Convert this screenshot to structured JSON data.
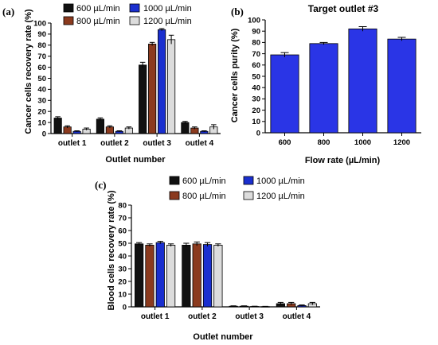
{
  "panels": {
    "a": "(a)",
    "b": "(b)",
    "c": "(c)"
  },
  "legend_ac": [
    "600 µL/min",
    "800 µL/min",
    "1000 µL/min",
    "1200 µL/min"
  ],
  "colors": {
    "600": "#111111",
    "800": "#8b3a1e",
    "1000": "#1a2fcf",
    "1200": "#dcdcdc",
    "bar_b": "#2a35e6"
  },
  "chart_data": [
    {
      "type": "bar",
      "panel": "a",
      "title": "",
      "xlabel": "Outlet number",
      "ylabel": "Cancer cells recovery rate (%)",
      "categories": [
        "outlet 1",
        "outlet 2",
        "outlet 3",
        "outlet 4"
      ],
      "ylim": [
        0,
        100
      ],
      "yticks": [
        0,
        10,
        20,
        30,
        40,
        50,
        60,
        70,
        80,
        90,
        100
      ],
      "series": [
        {
          "name": "600 µL/min",
          "values": [
            14,
            13,
            62,
            10
          ],
          "errors": [
            1.2,
            1.2,
            2.5,
            1
          ]
        },
        {
          "name": "800 µL/min",
          "values": [
            6,
            6,
            81,
            5
          ],
          "errors": [
            1,
            1,
            1.5,
            1
          ]
        },
        {
          "name": "1000 µL/min",
          "values": [
            2,
            2,
            94,
            2
          ],
          "errors": [
            0.5,
            0.5,
            1,
            0.5
          ]
        },
        {
          "name": "1200 µL/min",
          "values": [
            4,
            5,
            85,
            6
          ],
          "errors": [
            1,
            1,
            4,
            2
          ]
        }
      ]
    },
    {
      "type": "bar",
      "panel": "b",
      "title": "Target outlet #3",
      "xlabel": "Flow rate (µL/min)",
      "ylabel": "Cancer cells purity (%)",
      "categories": [
        "600",
        "800",
        "1000",
        "1200"
      ],
      "ylim": [
        0,
        100
      ],
      "yticks": [
        0,
        10,
        20,
        30,
        40,
        50,
        60,
        70,
        80,
        90,
        100
      ],
      "series": [
        {
          "values": [
            69,
            79,
            92,
            83
          ],
          "errors": [
            2,
            1,
            2,
            1.5
          ]
        }
      ]
    },
    {
      "type": "bar",
      "panel": "c",
      "title": "",
      "xlabel": "Outlet number",
      "ylabel": "Blood cells recovery rate (%)",
      "categories": [
        "outlet 1",
        "outlet 2",
        "outlet 3",
        "outlet 4"
      ],
      "ylim": [
        0,
        80
      ],
      "yticks": [
        0,
        10,
        20,
        30,
        40,
        50,
        60,
        70,
        80
      ],
      "series": [
        {
          "name": "600 µL/min",
          "values": [
            49.5,
            48.5,
            0.5,
            2.5
          ],
          "errors": [
            1,
            1.5,
            0.3,
            1
          ]
        },
        {
          "name": "800 µL/min",
          "values": [
            48.5,
            49.5,
            0.5,
            2.5
          ],
          "errors": [
            1,
            1.5,
            0.3,
            1
          ]
        },
        {
          "name": "1000 µL/min",
          "values": [
            50.5,
            49,
            0.3,
            1
          ],
          "errors": [
            1,
            1.5,
            0.2,
            0.5
          ]
        },
        {
          "name": "1200 µL/min",
          "values": [
            48.5,
            48.5,
            0.2,
            2.5
          ],
          "errors": [
            1,
            1,
            0.2,
            1
          ]
        }
      ]
    }
  ]
}
